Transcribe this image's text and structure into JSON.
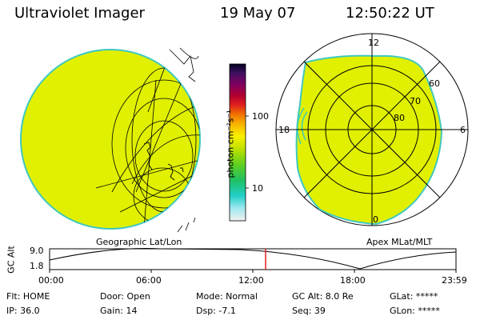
{
  "header": {
    "instrument": "Ultraviolet Imager",
    "date": "19 May 07",
    "time": "12:50:22 UT"
  },
  "colorbar": {
    "unit_label": "photon cm⁻²s⁻¹",
    "tick_100": "100",
    "tick_10": "10"
  },
  "polar": {
    "mlt_12": "12",
    "mlt_18": "18",
    "mlt_6": "6",
    "mlt_0": "0",
    "lat_60": "60",
    "lat_70": "70",
    "lat_80": "80"
  },
  "projections": {
    "left": "Geographic Lat/Lon",
    "right": "Apex MLat/MLT"
  },
  "altitude_plot": {
    "ylabel": "GC Alt",
    "ytick_top": "9.0",
    "ytick_bottom": "1.8",
    "xticks": [
      "00:00",
      "06:00",
      "12:00",
      "18:00",
      "23:59"
    ],
    "current_time_fraction": 0.535
  },
  "info": {
    "filter": "Flt: HOME",
    "ip": "IP: 36.0",
    "door": "Door: Open",
    "gain": "Gain: 14",
    "mode": "Mode: Normal",
    "dsp": "Dsp:   -7.1",
    "gc_alt": "GC Alt: 8.0 Re",
    "seq": "Seq: 39",
    "glat": "GLat: *****",
    "glon": "GLon: *****"
  },
  "colors": {
    "fill": "#e0f000",
    "edge": "#40c8c0",
    "marker": "#e02020"
  }
}
